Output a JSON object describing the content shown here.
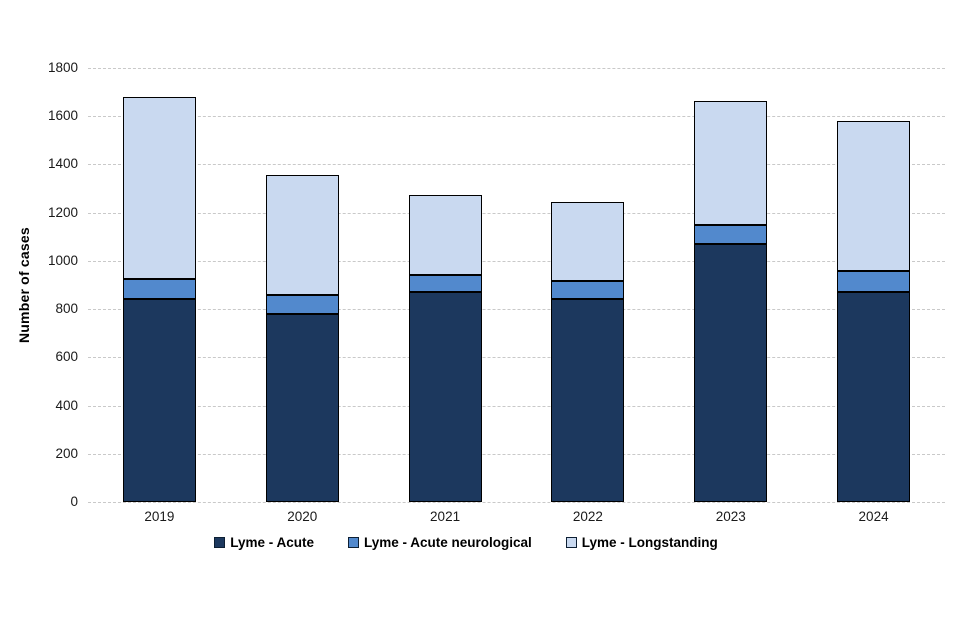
{
  "chart_data": {
    "type": "bar",
    "stacked": true,
    "title": "",
    "ylabel": "Number of cases",
    "xlabel": "",
    "categories": [
      "2019",
      "2020",
      "2021",
      "2022",
      "2023",
      "2024"
    ],
    "series": [
      {
        "name": "Lyme - Acute",
        "color": "#1C385E",
        "values": [
          840,
          780,
          870,
          840,
          1070,
          870
        ]
      },
      {
        "name": "Lyme - Acute neurological",
        "color": "#5289CD",
        "values": [
          85,
          80,
          70,
          75,
          80,
          90
        ]
      },
      {
        "name": "Lyme - Longstanding",
        "color": "#C9D9F0",
        "values": [
          755,
          495,
          335,
          330,
          515,
          620
        ]
      }
    ],
    "totals": [
      1680,
      1355,
      1275,
      1245,
      1665,
      1580
    ],
    "ylim": [
      0,
      1800
    ],
    "yticks": [
      0,
      200,
      400,
      600,
      800,
      1000,
      1200,
      1400,
      1600,
      1800
    ],
    "grid": true,
    "gridline_color": "#c9c9c9",
    "bar_border_color": "#000000",
    "legend_position": "bottom"
  }
}
